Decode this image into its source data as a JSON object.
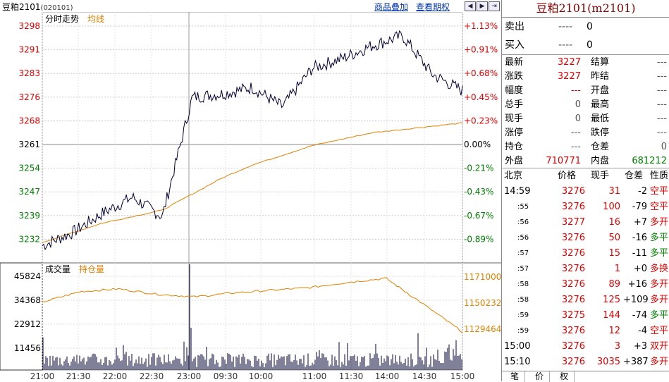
{
  "header": {
    "title": "豆粕2101",
    "code": "(020101)",
    "link_overlay": "商品叠加",
    "link_rights": "查看期权",
    "nav_prev": "◀",
    "nav_next": "▶",
    "nav_last": "⇥"
  },
  "price_chart": {
    "label_trend": "分时走势",
    "label_avg": "均线",
    "left_ticks": [
      "3298",
      "3291",
      "3283",
      "3276",
      "3268",
      "3261",
      "3254",
      "3247",
      "3239",
      "3232"
    ],
    "right_ticks": [
      "+1.13%",
      "+0.91%",
      "+0.68%",
      "+0.45%",
      "+0.23%",
      "0.00%",
      "-0.21%",
      "-0.43%",
      "-0.67%",
      "-0.89%"
    ],
    "ylim": [
      3227,
      3301
    ]
  },
  "volume_chart": {
    "label_volume": "成交量",
    "label_oi": "持仓量",
    "left_ticks": [
      "45824",
      "34368",
      "22912",
      "11456"
    ],
    "right_ticks": [
      "1171000",
      "1150232",
      "1129464"
    ]
  },
  "time_axis": [
    "21:00",
    "21:30",
    "22:00",
    "22:30",
    "23:00",
    "09:30",
    "10:00",
    "11:00",
    "11:30",
    "14:00",
    "14:30",
    "15:00"
  ],
  "chart_data": {
    "type": "line",
    "x_label_ticks": [
      "21:00",
      "21:30",
      "22:00",
      "22:30",
      "23:00",
      "09:30",
      "10:00",
      "11:00",
      "11:30",
      "14:00",
      "14:30",
      "15:00"
    ],
    "series": [
      {
        "name": "分时走势",
        "values": [
          3230,
          3234,
          3240,
          3245,
          3239,
          3276,
          3277,
          3279,
          3273,
          3285,
          3288,
          3292,
          3295,
          3283,
          3278
        ]
      },
      {
        "name": "均线",
        "values": [
          3231,
          3234,
          3237,
          3239,
          3241,
          3246,
          3251,
          3255,
          3258,
          3261,
          3263,
          3265,
          3266,
          3267,
          3268
        ]
      }
    ],
    "volume_series": {
      "name": "成交量",
      "ylim": [
        0,
        50000
      ]
    },
    "oi_series": {
      "name": "持仓量",
      "values": [
        1152000,
        1160000,
        1162000,
        1158000,
        1156000,
        1159000,
        1161000,
        1163000,
        1167000,
        1170000,
        1150000,
        1129464
      ]
    }
  },
  "quote": {
    "title": "豆粕2101(m2101)",
    "sell_label": "卖出",
    "sell_dash": "----",
    "sell_val": "0",
    "buy_label": "买入",
    "buy_dash": "----",
    "buy_val": "0",
    "fields": [
      {
        "l1": "最新",
        "v1": "3227",
        "l2": "结算",
        "v2": "---"
      },
      {
        "l1": "涨跌",
        "v1": "3227",
        "l2": "昨结",
        "v2": "---"
      },
      {
        "l1": "幅度",
        "v1": "---",
        "l2": "开盘",
        "v2": "---"
      },
      {
        "l1": "总手",
        "v1": "0",
        "l2": "最高",
        "v2": "---"
      },
      {
        "l1": "现手",
        "v1": "0",
        "l2": "最低",
        "v2": "---"
      },
      {
        "l1": "涨停",
        "v1": "---",
        "l2": "跌停",
        "v2": "---"
      },
      {
        "l1": "持仓",
        "v1": "---",
        "l2": "仓差",
        "v2": "0"
      },
      {
        "l1": "外盘",
        "v1": "710771",
        "l2": "内盘",
        "v2": "681212"
      }
    ],
    "tick_header": {
      "time": "北京",
      "price": "价格",
      "vol": "现手",
      "diff": "仓差",
      "type": "性质"
    },
    "ticks": [
      {
        "time": "14:59",
        "price": "3276",
        "vol": "31",
        "diff": "-2",
        "type": "空平",
        "tc": "red"
      },
      {
        "time": ":55",
        "price": "3276",
        "vol": "100",
        "diff": "-79",
        "type": "空平",
        "tc": "red"
      },
      {
        "time": ":56",
        "price": "3277",
        "vol": "16",
        "diff": "+7",
        "type": "多开",
        "tc": "red"
      },
      {
        "time": ":56",
        "price": "3276",
        "vol": "50",
        "diff": "-16",
        "type": "多平",
        "tc": "grn"
      },
      {
        "time": ":57",
        "price": "3276",
        "vol": "15",
        "diff": "-11",
        "type": "多平",
        "tc": "grn"
      },
      {
        "time": ":57",
        "price": "3276",
        "vol": "1",
        "diff": "+0",
        "type": "多换",
        "tc": "red"
      },
      {
        "time": ":58",
        "price": "3276",
        "vol": "89",
        "diff": "+16",
        "type": "多开",
        "tc": "red"
      },
      {
        "time": ":58",
        "price": "3276",
        "vol": "125",
        "diff": "+109",
        "type": "多开",
        "tc": "red"
      },
      {
        "time": ":59",
        "price": "3275",
        "vol": "144",
        "diff": "-74",
        "type": "多平",
        "tc": "grn"
      },
      {
        "time": ":59",
        "price": "3276",
        "vol": "12",
        "diff": "-4",
        "type": "空平",
        "tc": "red"
      },
      {
        "time": "15:00",
        "price": "3276",
        "vol": "3",
        "diff": "+3",
        "type": "双开",
        "tc": "red"
      },
      {
        "time": "15:10",
        "price": "3276",
        "vol": "3035",
        "diff": "+387",
        "type": "多开",
        "tc": "red"
      }
    ],
    "tabs": [
      "笔",
      "价",
      "权"
    ]
  },
  "colors": {
    "up": "#e00000",
    "down": "#008000",
    "avg": "#e08000",
    "grid": "#bbbbbb",
    "price_line": "#000033"
  }
}
